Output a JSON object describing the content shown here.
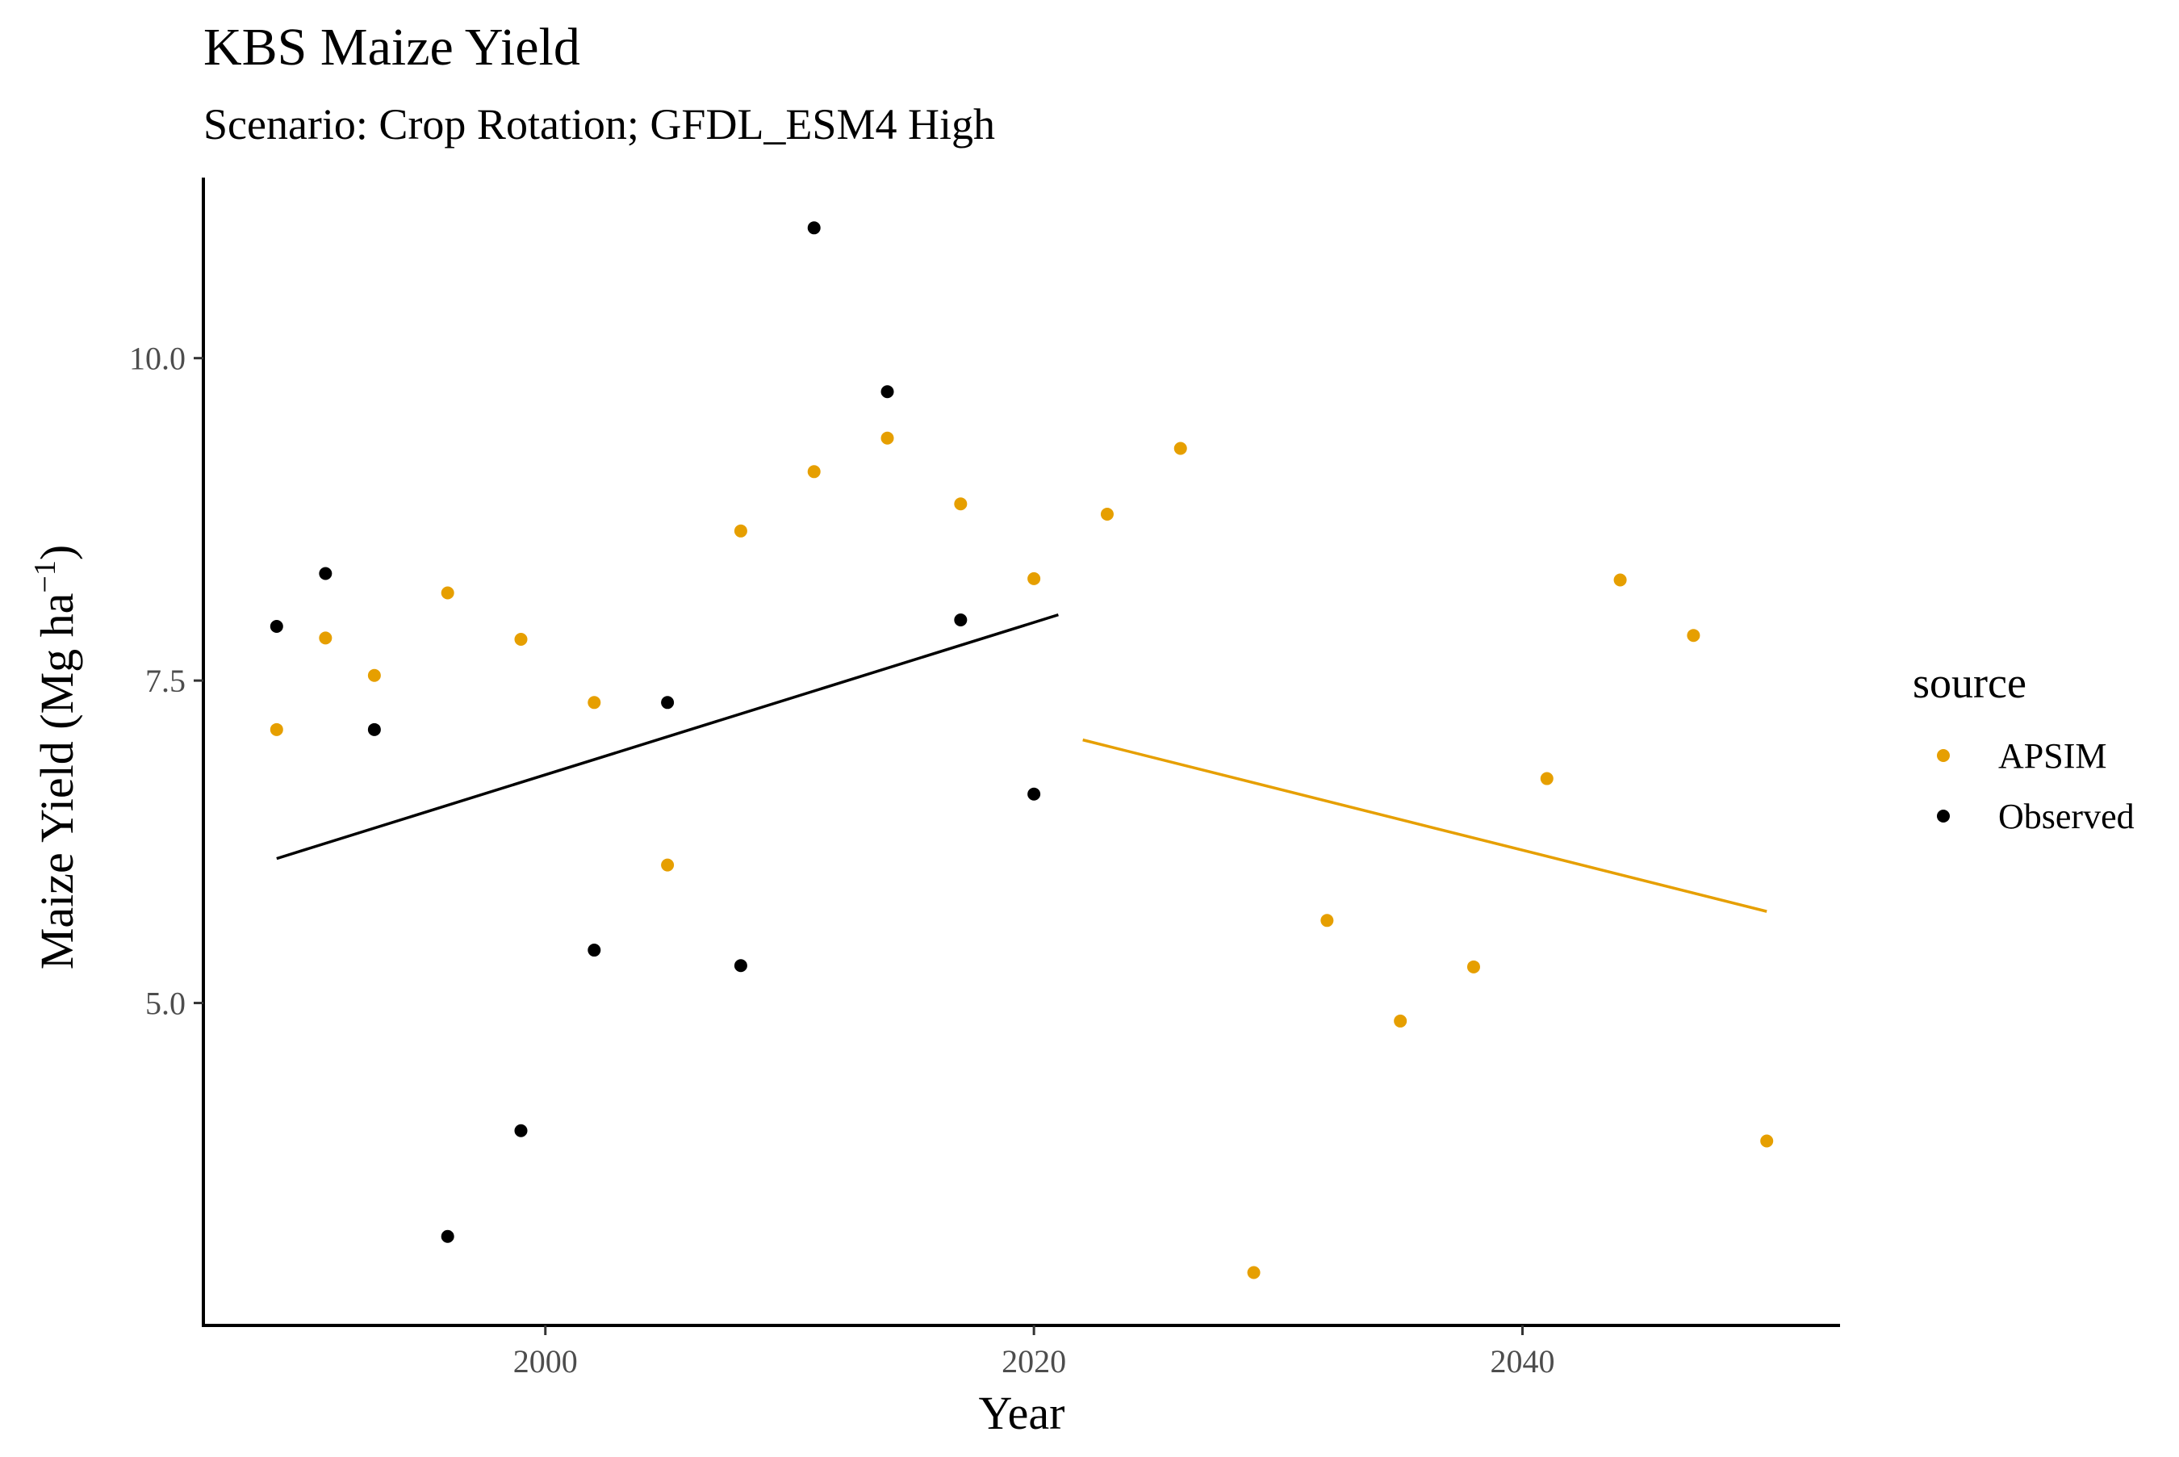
{
  "chart_data": {
    "type": "scatter",
    "title": "KBS Maize Yield",
    "subtitle": "Scenario: Crop Rotation; GFDL_ESM4 High",
    "xlabel": "Year",
    "ylabel_main": "Maize Yield (Mg ha",
    "ylabel_sup": "−1",
    "ylabel_close": ")",
    "xlim": [
      1986,
      2053
    ],
    "ylim": [
      2.5,
      11.4
    ],
    "x_ticks": [
      2000,
      2020,
      2040
    ],
    "x_tick_labels": [
      "2000",
      "2020",
      "2040"
    ],
    "y_ticks": [
      5.0,
      7.5,
      10.0
    ],
    "y_tick_labels": [
      "5.0",
      "7.5",
      "10.0"
    ],
    "grid": false,
    "legend": {
      "title": "source",
      "placement": "right"
    },
    "series": [
      {
        "name": "APSIM",
        "color": "#E69F00",
        "x": [
          1989,
          1991,
          1993,
          1996,
          1999,
          2002,
          2005,
          2008,
          2011,
          2014,
          2017,
          2020,
          2023,
          2026,
          2029,
          2032,
          2035,
          2038,
          2041,
          2044,
          2047,
          2050
        ],
        "y": [
          7.12,
          7.83,
          7.54,
          8.18,
          7.82,
          7.33,
          6.07,
          8.66,
          9.12,
          9.38,
          8.87,
          8.29,
          8.79,
          9.3,
          2.91,
          5.64,
          4.86,
          5.28,
          6.74,
          8.28,
          7.85,
          3.93
        ],
        "trend": {
          "x": [
            2022,
            2050
          ],
          "y": [
            7.04,
            5.71
          ]
        }
      },
      {
        "name": "Observed",
        "color": "#000000",
        "x": [
          1989,
          1991,
          1993,
          1996,
          1999,
          2002,
          2005,
          2008,
          2011,
          2014,
          2017,
          2020
        ],
        "y": [
          7.92,
          8.33,
          7.12,
          3.19,
          4.01,
          5.41,
          7.33,
          5.29,
          11.01,
          9.74,
          7.97,
          6.62
        ],
        "trend": {
          "x": [
            1989,
            2021
          ],
          "y": [
            6.12,
            8.01
          ]
        }
      }
    ]
  }
}
